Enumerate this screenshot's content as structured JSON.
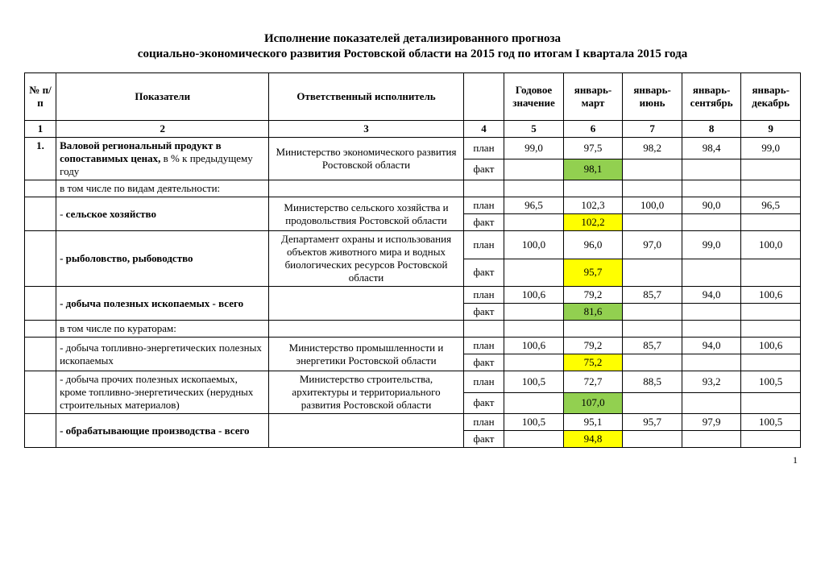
{
  "title_line1": "Исполнение показателей  детализированного прогноза",
  "title_line2": "социально-экономического развития Ростовской области на 2015 год по итогам I квартала 2015 года",
  "page_number": "1",
  "headers": {
    "num": "№ п/п",
    "indicator": "Показатели",
    "executor": "Ответственный исполнитель",
    "blank": "",
    "annual": "Годовое значение",
    "q1": "январь-март",
    "q2": "январь-июнь",
    "q3": "январь-сентябрь",
    "q4": "январь-декабрь"
  },
  "colnums": [
    "1",
    "2",
    "3",
    "4",
    "5",
    "6",
    "7",
    "8",
    "9"
  ],
  "labels": {
    "plan": "план",
    "fakt": "факт"
  },
  "highlight_colors": {
    "green": "#92d050",
    "yellow": "#ffff00"
  },
  "rows": [
    {
      "num": "1.",
      "indicator_html": "<span class='bold'>Валовой региональный продукт в сопоставимых ценах,</span> в % к предыдущему году",
      "executor": "Министерство экономического развития Ростовской области",
      "plan": {
        "annual": "99,0",
        "q1": "97,5",
        "q2": "98,2",
        "q3": "98,4",
        "q4": "99,0"
      },
      "fakt": {
        "annual": "",
        "q1": "98,1",
        "q2": "",
        "q3": "",
        "q4": ""
      },
      "fakt_hl": {
        "q1": "green"
      }
    },
    {
      "section": "в том числе по видам деятельности:"
    },
    {
      "indicator_html": "- <span class='bold'>сельское хозяйство</span>",
      "executor": "Министерство сельского хозяйства и продовольствия Ростовской области",
      "plan": {
        "annual": "96,5",
        "q1": "102,3",
        "q2": "100,0",
        "q3": "90,0",
        "q4": "96,5"
      },
      "fakt": {
        "annual": "",
        "q1": "102,2",
        "q2": "",
        "q3": "",
        "q4": ""
      },
      "fakt_hl": {
        "q1": "yellow"
      }
    },
    {
      "indicator_html": "<span class='bold'>- рыболовство, рыбоводство</span>",
      "executor": "Департамент охраны и использования объектов животного мира и водных биологических ресурсов Ростовской области",
      "plan": {
        "annual": "100,0",
        "q1": "96,0",
        "q2": "97,0",
        "q3": "99,0",
        "q4": "100,0"
      },
      "fakt": {
        "annual": "",
        "q1": "95,7",
        "q2": "",
        "q3": "",
        "q4": ""
      },
      "fakt_hl": {
        "q1": "yellow"
      }
    },
    {
      "indicator_html": "<span class='bold'>-  добыча полезных ископаемых - всего</span>",
      "executor": "",
      "plan": {
        "annual": "100,6",
        "q1": "79,2",
        "q2": "85,7",
        "q3": "94,0",
        "q4": "100,6"
      },
      "fakt": {
        "annual": "",
        "q1": "81,6",
        "q2": "",
        "q3": "",
        "q4": ""
      },
      "fakt_hl": {
        "q1": "green"
      }
    },
    {
      "section": "в том числе по кураторам:"
    },
    {
      "indicator_html": "-  добыча топливно-энергетических полезных ископаемых",
      "executor": "Министерство промышленности   и энергетики Ростовской  области",
      "plan": {
        "annual": "100,6",
        "q1": "79,2",
        "q2": "85,7",
        "q3": "94,0",
        "q4": "100,6"
      },
      "fakt": {
        "annual": "",
        "q1": "75,2",
        "q2": "",
        "q3": "",
        "q4": ""
      },
      "fakt_hl": {
        "q1": "yellow"
      }
    },
    {
      "indicator_html": "- добыча прочих полезных ископаемых, кроме топливно-энергетических (нерудных строительных материалов)",
      "executor": "Министерство  строительства, архитектуры и территориального развития Ростовской области",
      "plan": {
        "annual": "100,5",
        "q1": "72,7",
        "q2": "88,5",
        "q3": "93,2",
        "q4": "100,5"
      },
      "fakt": {
        "annual": "",
        "q1": "107,0",
        "q2": "",
        "q3": "",
        "q4": ""
      },
      "fakt_hl": {
        "q1": "green"
      }
    },
    {
      "indicator_html": "<span class='bold'>- обрабатывающие  производства - всего</span>",
      "executor": "",
      "plan": {
        "annual": "100,5",
        "q1": "95,1",
        "q2": "95,7",
        "q3": "97,9",
        "q4": "100,5"
      },
      "fakt": {
        "annual": "",
        "q1": "94,8",
        "q2": "",
        "q3": "",
        "q4": ""
      },
      "fakt_hl": {
        "q1": "yellow"
      }
    }
  ]
}
